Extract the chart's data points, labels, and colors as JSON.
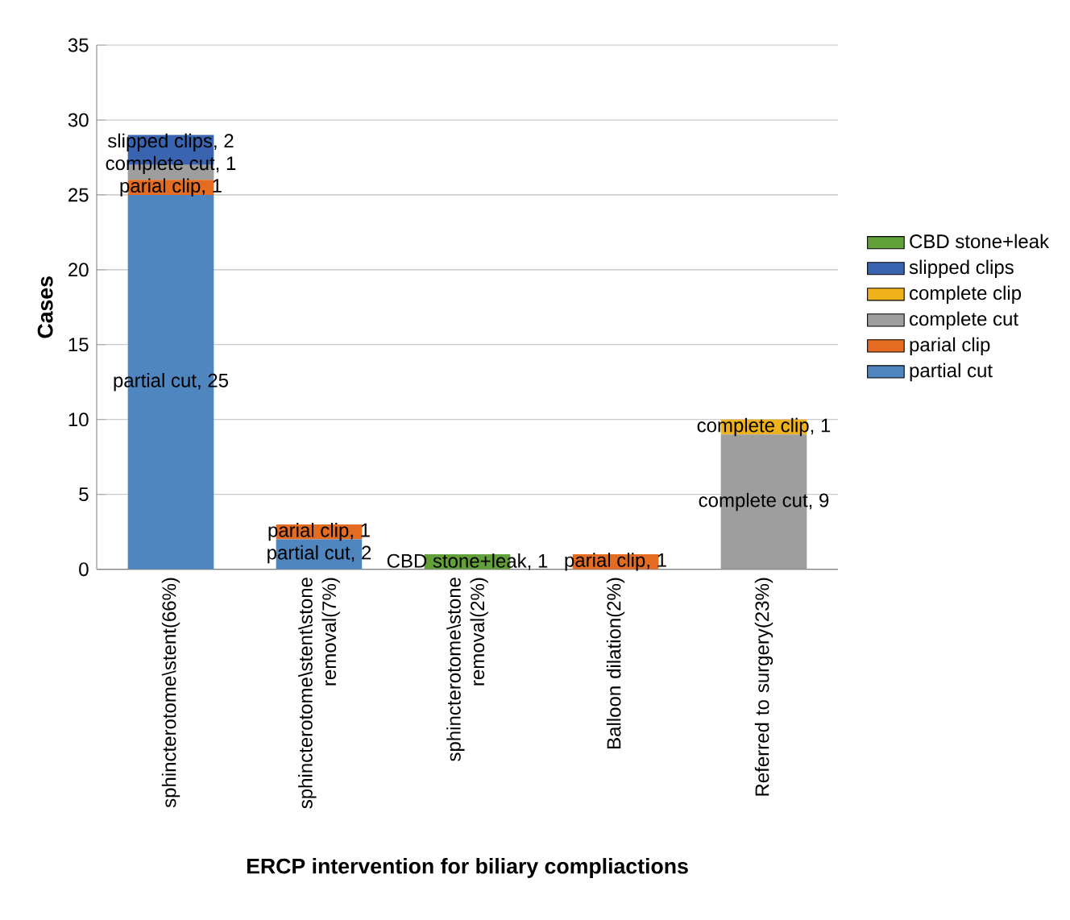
{
  "chart_data": {
    "type": "bar",
    "stacked": true,
    "categories": [
      "sphincterotome\\stent(66%)",
      "sphincterotome\\stent\\stone removal(7%)",
      "sphincterotome\\stone removal(2%)",
      "Balloon dilation(2%)",
      "Referred to surgery(23%)"
    ],
    "series": [
      {
        "name": "partial cut",
        "color": "#4f86c0",
        "values": [
          25,
          2,
          null,
          null,
          null
        ],
        "value_labels": [
          "partial cut, 25",
          "partial cut, 2",
          null,
          null,
          null
        ]
      },
      {
        "name": "parial clip",
        "color": "#e36c21",
        "values": [
          1,
          1,
          null,
          1,
          null
        ],
        "value_labels": [
          "parial clip, 1",
          "parial clip, 1",
          null,
          "parial clip, 1",
          null
        ]
      },
      {
        "name": "complete cut",
        "color": "#9e9e9e",
        "values": [
          1,
          null,
          null,
          null,
          9
        ],
        "value_labels": [
          "complete cut, 1",
          null,
          null,
          null,
          "complete cut, 9"
        ]
      },
      {
        "name": "complete clip",
        "color": "#efb21c",
        "values": [
          null,
          null,
          null,
          null,
          1
        ],
        "value_labels": [
          null,
          null,
          null,
          null,
          "complete clip, 1"
        ]
      },
      {
        "name": "slipped clips",
        "color": "#3a64b0",
        "values": [
          2,
          null,
          null,
          null,
          null
        ],
        "value_labels": [
          "slipped clips, 2",
          null,
          null,
          null,
          null
        ]
      },
      {
        "name": "CBD stone+leak",
        "color": "#62a03a",
        "values": [
          null,
          null,
          1,
          null,
          null
        ],
        "value_labels": [
          null,
          null,
          "CBD stone+leak, 1",
          null,
          null
        ]
      }
    ],
    "xlabel": "ERCP intervention for biliary compliactions",
    "ylabel": "Cases",
    "ylim": [
      0,
      35
    ],
    "yticks": [
      0,
      5,
      10,
      15,
      20,
      25,
      30,
      35
    ],
    "grid": "y",
    "legend": "right"
  }
}
